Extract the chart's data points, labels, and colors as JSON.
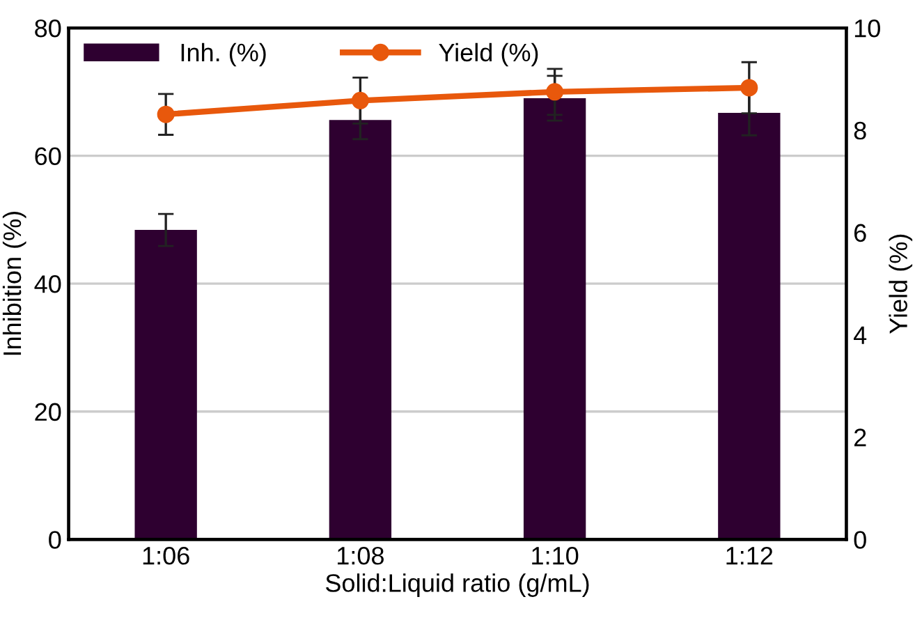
{
  "chart_data": {
    "type": "bar",
    "xlabel": "Solid:Liquid ratio (g/mL)",
    "ylabel": "Inhibition (%)",
    "y2label": "Yield (%)",
    "categories": [
      "1:06",
      "1:08",
      "1:10",
      "1:12"
    ],
    "series": [
      {
        "name": "Inh. (%)",
        "color": "#2e0030",
        "values": [
          48.4,
          65.6,
          69,
          66.7
        ],
        "errors": [
          2.5,
          3,
          3.5,
          3.5
        ]
      },
      {
        "name": "Yield (%)",
        "type": "line",
        "axis": "y2",
        "color": "#e8580c",
        "values": [
          8.31,
          8.58,
          8.75,
          8.83
        ],
        "errors": [
          0.4,
          0.45,
          0.45,
          0.5
        ]
      }
    ],
    "ylim": [
      0,
      80
    ],
    "yticks": [
      0,
      20,
      40,
      60,
      80
    ],
    "y2lim": [
      0,
      10
    ],
    "y2ticks": [
      0,
      2,
      4,
      6,
      8,
      10
    ],
    "grid": "y",
    "legend": "top left",
    "marker": "circle",
    "line_style": "solid"
  }
}
